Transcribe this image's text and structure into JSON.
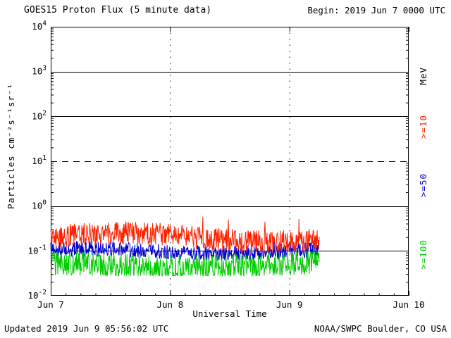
{
  "header": {
    "title": "GOES15 Proton Flux (5 minute data)",
    "begin": "Begin: 2019 Jun 7 0000 UTC"
  },
  "footer": {
    "updated": "Updated 2019 Jun  9 05:56:02 UTC",
    "source": "NOAA/SWPC Boulder, CO USA"
  },
  "chart_data": {
    "type": "line",
    "title": "GOES15 Proton Flux (5 minute data)",
    "xlabel": "Universal Time",
    "ylabel": "Particles cm⁻²s⁻¹sr⁻¹",
    "x_ticks": [
      "Jun 7",
      "Jun 8",
      "Jun 9",
      "Jun 10"
    ],
    "x_range_days": [
      0,
      3
    ],
    "ylim": [
      0.01,
      10000
    ],
    "y_scale": "log",
    "y_tick_exponents": [
      4,
      3,
      2,
      1,
      0,
      -1,
      -2
    ],
    "solid_gridlines": [
      3,
      2,
      0,
      -1
    ],
    "dashed_gridlines": [
      1
    ],
    "vertical_gridline_days": [
      1,
      2
    ],
    "grid": true,
    "legend": {
      "position": "right-rotated",
      "unit": "MeV",
      "entries": [
        {
          "label": ">=10",
          "color": "#ff2200"
        },
        {
          "label": ">=50",
          "color": "#0000cc"
        },
        {
          "label": ">=100",
          "color": "#00cc00"
        }
      ]
    },
    "series": [
      {
        "id": "p_gt10",
        "name": ">=10 MeV",
        "color": "#ff2200",
        "baseline": 0.2,
        "noise_decades": 0.26,
        "slow_amp": 0.1,
        "spike_prob": 0.012,
        "spike_mult": 1.7,
        "min": 0.09,
        "end_day": 2.25,
        "interval_days": 0.003472
      },
      {
        "id": "p_gt50",
        "name": ">=50 MeV",
        "color": "#0000cc",
        "baseline": 0.1,
        "noise_decades": 0.17,
        "slow_amp": 0.05,
        "spike_prob": 0.008,
        "spike_mult": 1.5,
        "min": 0.05,
        "end_day": 2.25,
        "interval_days": 0.003472
      },
      {
        "id": "p_gt100",
        "name": ">=100 MeV",
        "color": "#00cc00",
        "baseline": 0.048,
        "noise_decades": 0.27,
        "slow_amp": 0.05,
        "spike_prob": 0.0,
        "spike_mult": 1.0,
        "min": 0.028,
        "end_day": 2.25,
        "interval_days": 0.003472
      }
    ],
    "summary": "Three noisy flat proton-flux traces from Jun 7 0000 UTC to ~Jun 9 0600 UTC: >=10 MeV ~0.2, >=50 MeV ~0.1, >=100 MeV ~0.05 particles cm-2 s-1 sr-1; no events, all below the 10^1 alert threshold (dashed line)."
  }
}
